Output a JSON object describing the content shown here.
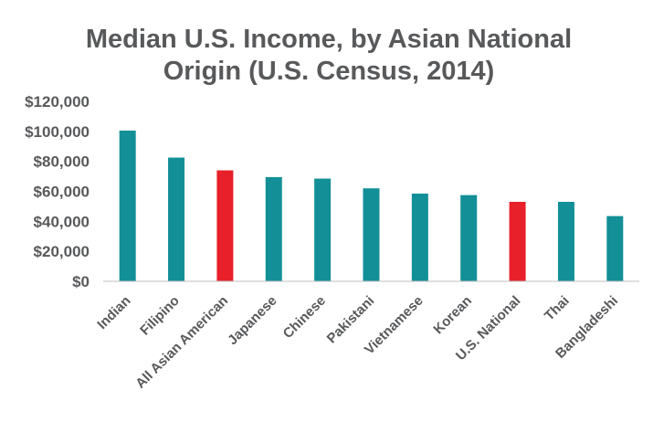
{
  "chart_data": {
    "type": "bar",
    "title": "Median U.S. Income, by Asian National Origin (U.S. Census, 2014)",
    "title_lines": [
      "Median U.S. Income, by Asian National",
      "Origin (U.S. Census, 2014)"
    ],
    "xlabel": "",
    "ylabel": "",
    "ylim": [
      0,
      120000
    ],
    "yticks": [
      0,
      20000,
      40000,
      60000,
      80000,
      100000,
      120000
    ],
    "ytick_labels": [
      "$0",
      "$20,000",
      "$40,000",
      "$60,000",
      "$80,000",
      "$100,000",
      "$120,000"
    ],
    "grid": false,
    "legend": "none",
    "categories": [
      "Indian",
      "Filipino",
      "All Asian American",
      "Japanese",
      "Chinese",
      "Pakistani",
      "Vietnamese",
      "Korean",
      "U.S. National",
      "Thai",
      "Bangladeshi"
    ],
    "values": [
      100500,
      82500,
      74000,
      69500,
      68500,
      62000,
      58500,
      57500,
      53000,
      53000,
      43500
    ],
    "highlighted": [
      "All Asian American",
      "U.S. National"
    ]
  },
  "colors": {
    "bar": "#138f97",
    "highlight": "#e8202a",
    "text": "#58595b",
    "axis": "#bfbfbf"
  }
}
